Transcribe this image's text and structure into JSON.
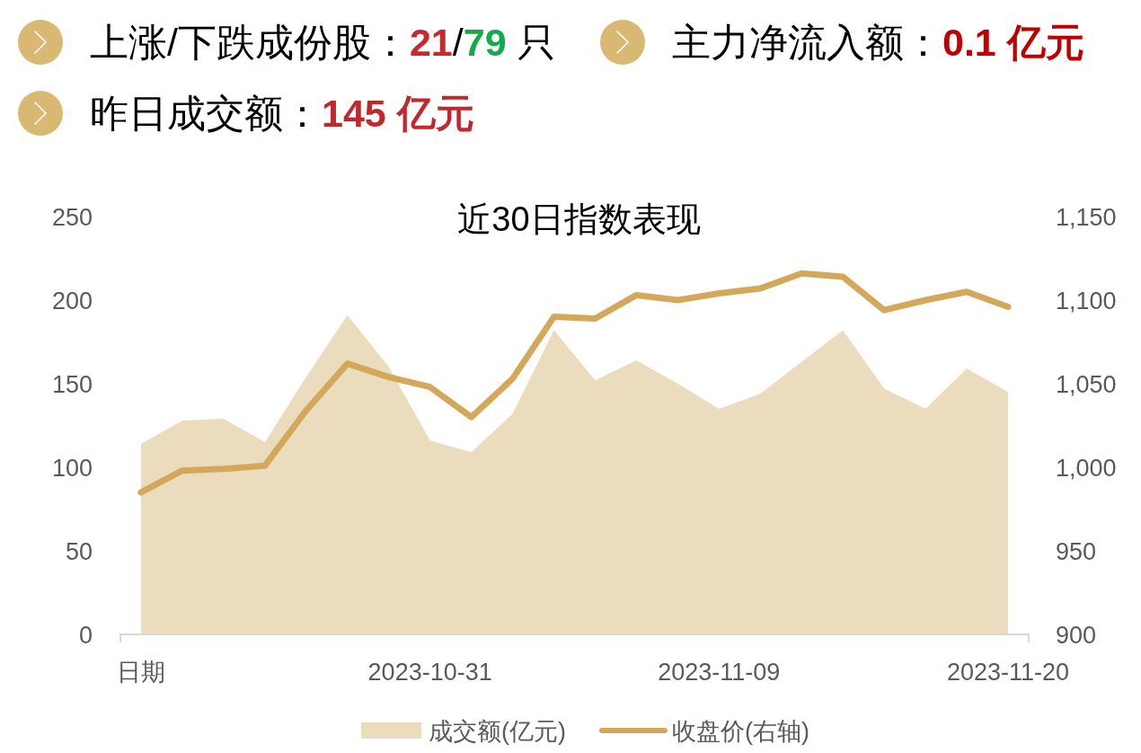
{
  "chart_data": [
    {
      "type": "other",
      "annotations": [
        "上涨/下跌成份股：**21**/**79** 只",
        "主力净流入额：**0.1 亿元**",
        "昨日成交额：**145 亿元**"
      ],
      "colors": [
        "#c8282e",
        "#16a94a",
        "#c00000",
        "#c0282d"
      ]
    },
    {
      "type": "area",
      "title": "近30日指数表现",
      "categories": [
        "日期",
        null,
        null,
        null,
        null,
        null,
        null,
        "2023-10-31",
        null,
        null,
        null,
        null,
        null,
        null,
        "2023-11-09",
        null,
        null,
        null,
        null,
        null,
        null,
        "2023-11-20"
      ],
      "series": [
        {
          "name": "成交额(亿元)",
          "type": "area",
          "color": "#eadcbc",
          "values": [
            114,
            128,
            129,
            115,
            154,
            191,
            160,
            116,
            109,
            132,
            182,
            152,
            164,
            150,
            135,
            144,
            163,
            182,
            147,
            135,
            159,
            145
          ]
        },
        {
          "name": "收盘价(右轴)",
          "type": "line",
          "axis": "y2",
          "color": "#d4a85a",
          "values": [
            985,
            998,
            999,
            1001,
            1034,
            1062,
            1054,
            1048,
            1030,
            1053,
            1090,
            1089,
            1103,
            1100,
            1104,
            1107,
            1116,
            1114,
            1094,
            1100,
            1105,
            1096
          ]
        }
      ],
      "ylim": [
        0,
        250
      ],
      "yticks": [
        0,
        50,
        100,
        150,
        200,
        250
      ],
      "y2lim": [
        900,
        1150
      ],
      "y2ticks": [
        900,
        950,
        {
          "value": 1000,
          "label": "1,000"
        },
        {
          "value": 1050,
          "label": "1,050"
        },
        {
          "value": 1100,
          "label": "1,100"
        },
        {
          "value": 1150,
          "label": "1,150"
        }
      ],
      "legend": "bottom"
    }
  ]
}
